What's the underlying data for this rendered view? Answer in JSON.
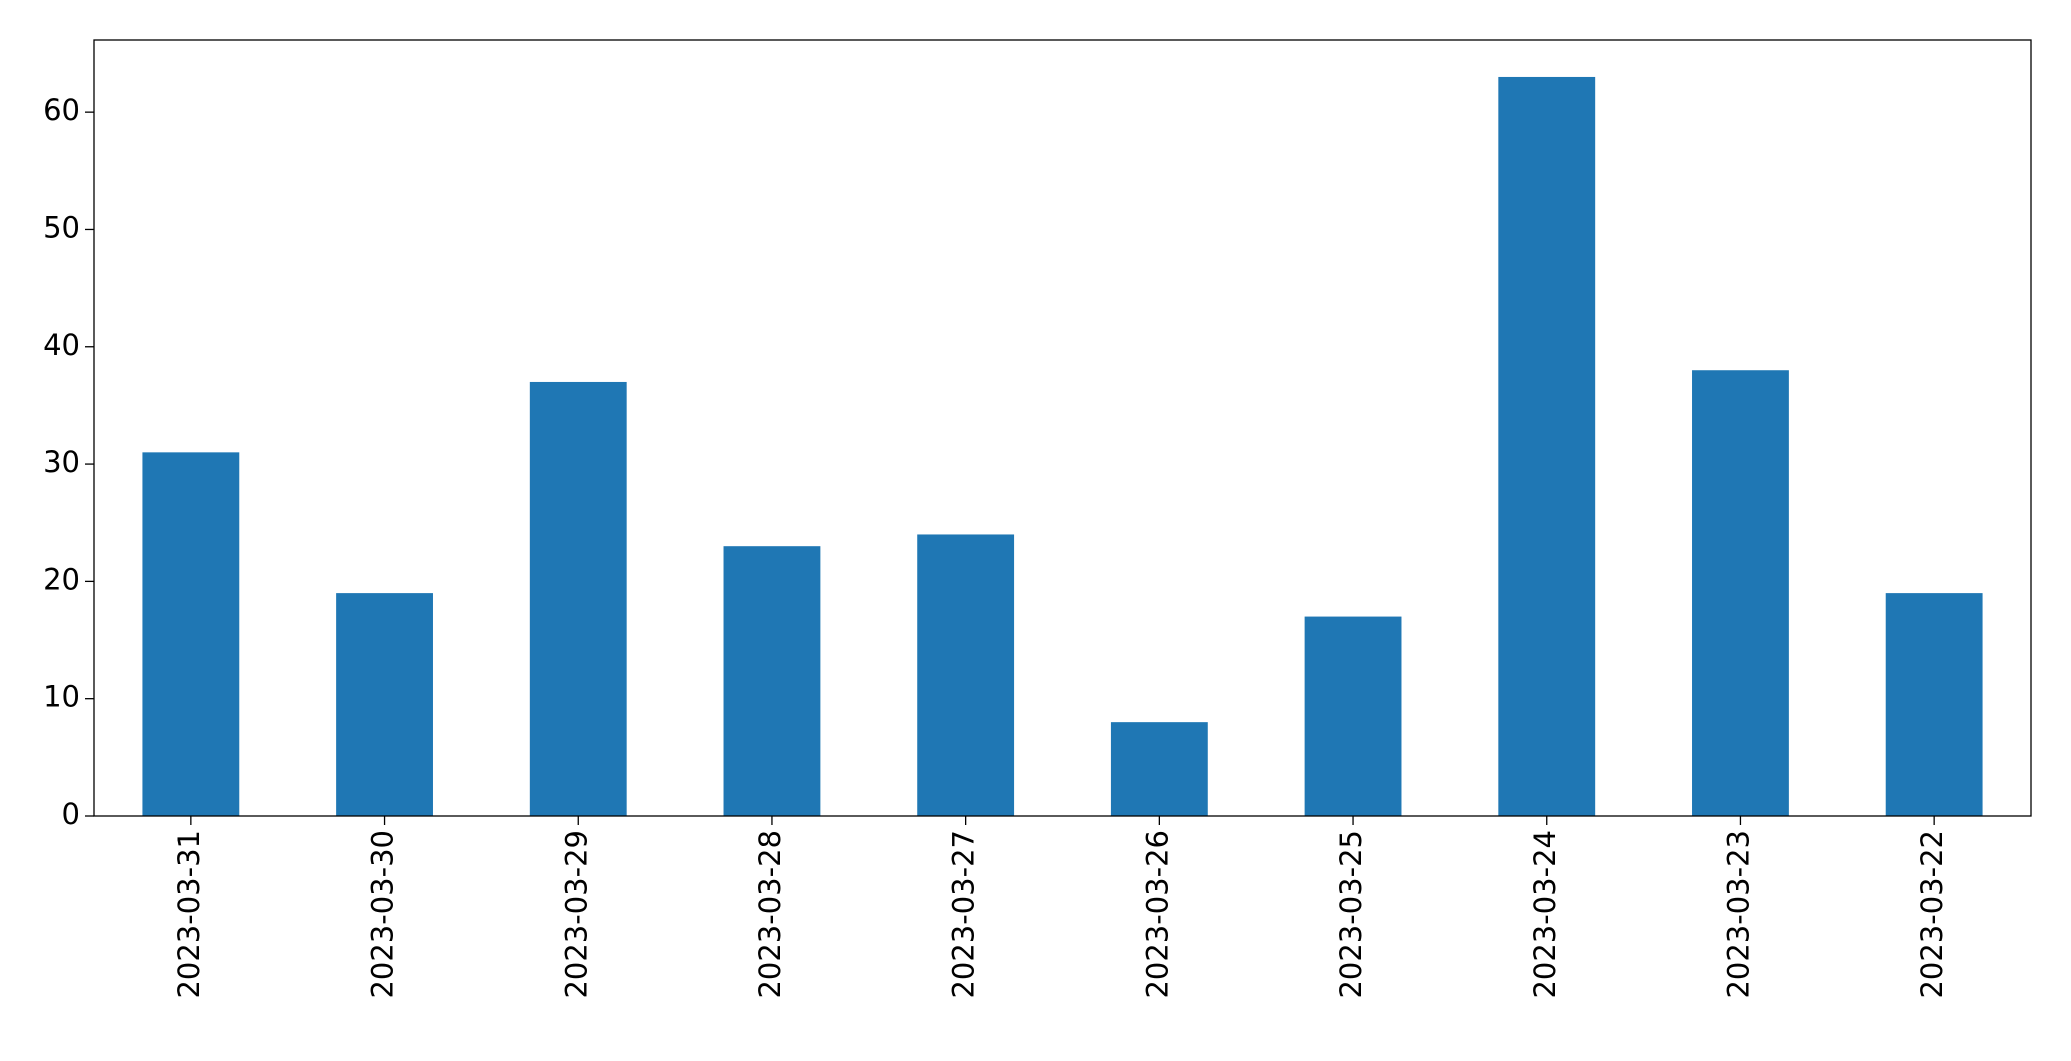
{
  "chart_data": {
    "type": "bar",
    "categories": [
      "2023-03-31",
      "2023-03-30",
      "2023-03-29",
      "2023-03-28",
      "2023-03-27",
      "2023-03-26",
      "2023-03-25",
      "2023-03-24",
      "2023-03-23",
      "2023-03-22"
    ],
    "values": [
      31,
      19,
      37,
      23,
      24,
      8,
      17,
      63,
      38,
      19
    ],
    "color": "#1f77b4",
    "ylim": [
      0,
      66.15
    ],
    "yticks": [
      0,
      10,
      20,
      30,
      40,
      50,
      60
    ],
    "grid": false
  }
}
